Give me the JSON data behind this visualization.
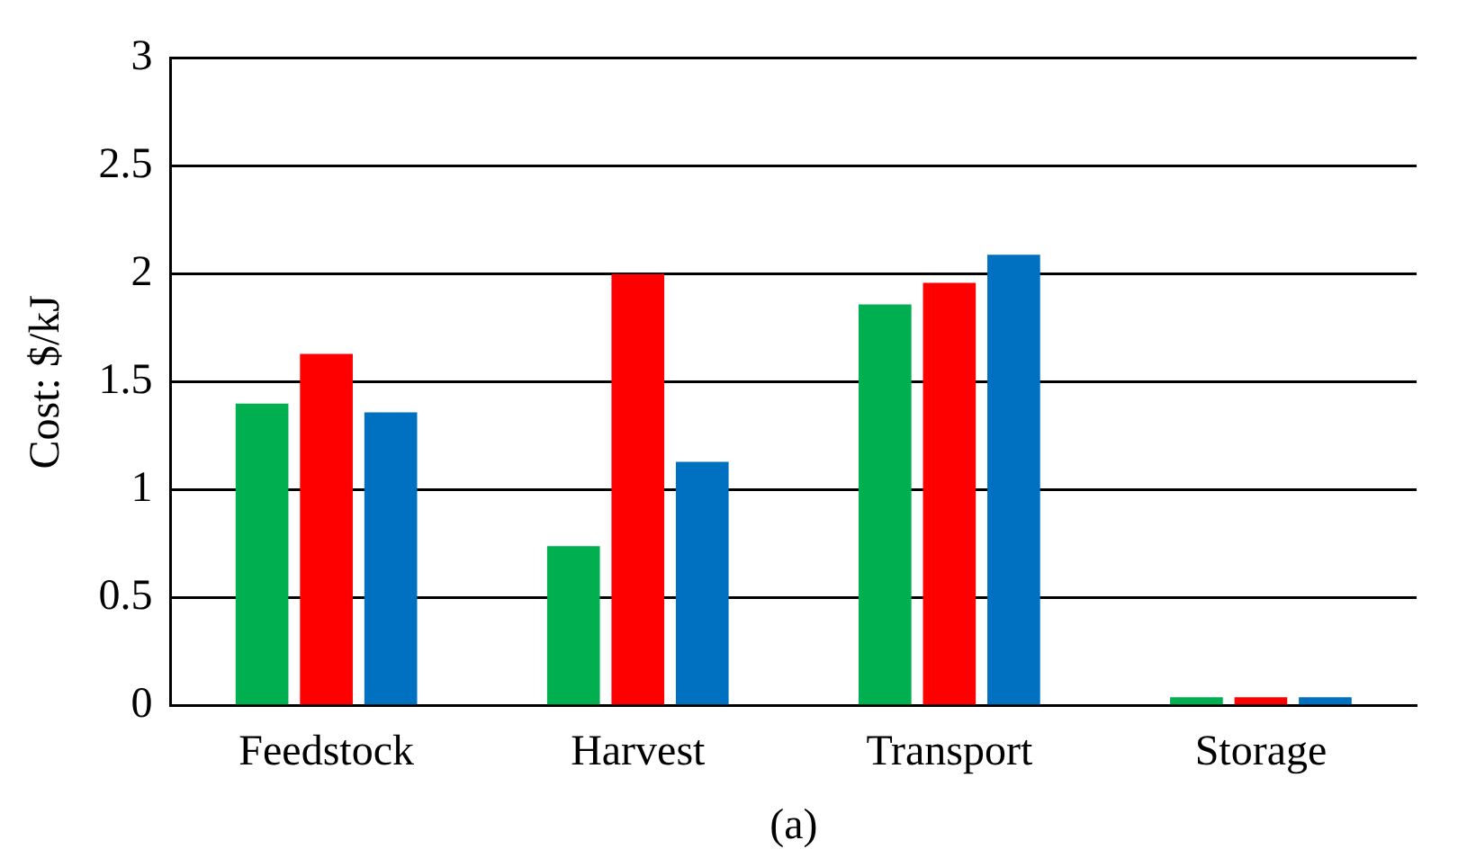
{
  "chart_data": {
    "type": "bar",
    "xlabel": "(a)",
    "ylabel": "Cost: $/kJ",
    "categories": [
      "Feedstock",
      "Harvest",
      "Transport",
      "Storage"
    ],
    "series": [
      {
        "color": "#00b050",
        "values": [
          1.4,
          0.74,
          1.86,
          0.04
        ]
      },
      {
        "color": "#ff0000",
        "values": [
          1.63,
          2.0,
          1.96,
          0.04
        ]
      },
      {
        "color": "#0070c0",
        "values": [
          1.36,
          1.13,
          2.09,
          0.04
        ]
      }
    ],
    "ylim": [
      0,
      3
    ],
    "yticks": [
      0,
      0.5,
      1,
      1.5,
      2,
      2.5,
      3
    ],
    "grid": "y",
    "legend": false
  }
}
